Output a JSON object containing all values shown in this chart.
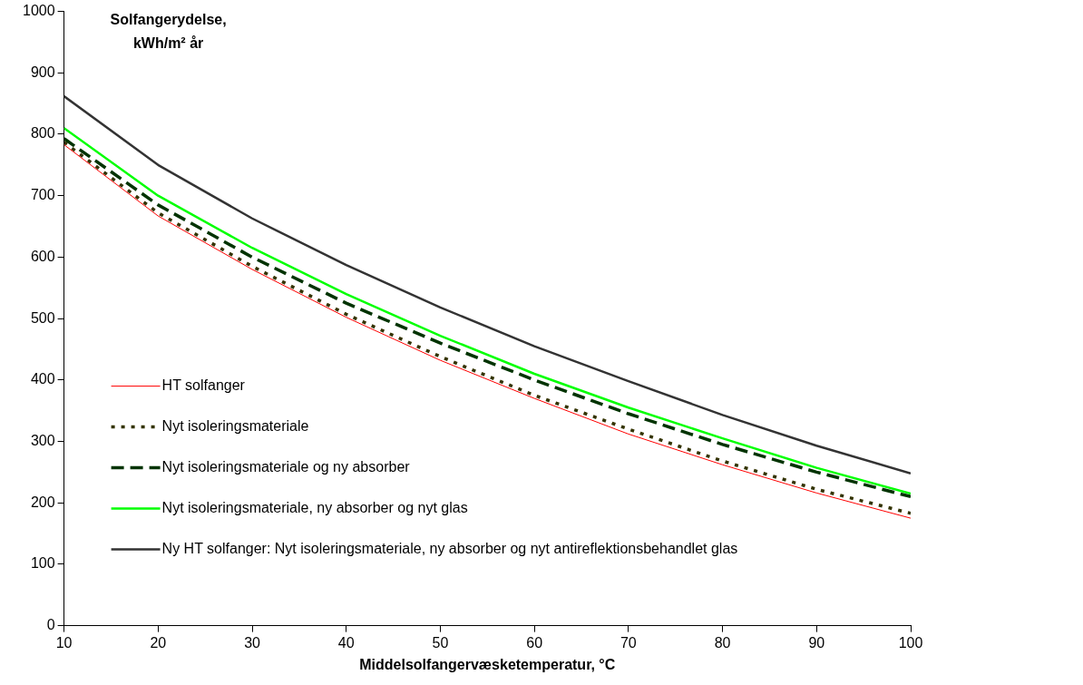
{
  "chart_data": {
    "type": "line",
    "xlabel": "Middelsolfangervæsketemperatur, °C",
    "ylabel": "Solfangerydelse, kWh/m² år",
    "x": [
      10,
      20,
      30,
      40,
      50,
      60,
      70,
      80,
      90,
      100
    ],
    "xlim": [
      10,
      100
    ],
    "xticks": [
      10,
      20,
      30,
      40,
      50,
      60,
      70,
      80,
      90,
      100
    ],
    "ylim": [
      0,
      1000
    ],
    "yticks": [
      0,
      100,
      200,
      300,
      400,
      500,
      600,
      700,
      800,
      900,
      1000
    ],
    "grid": false,
    "legend": "left",
    "marker": "none",
    "series": [
      {
        "name": "HT solfanger",
        "color": "#ff0000",
        "line_style": "solid",
        "values": [
          783,
          667,
          580,
          502,
          432,
          370,
          312,
          262,
          216,
          175
        ]
      },
      {
        "name": "Nyt isoleringsmateriale",
        "color": "#333300",
        "line_style": "dotted",
        "values": [
          787,
          672,
          585,
          507,
          438,
          375,
          320,
          268,
          222,
          183
        ]
      },
      {
        "name": "Nyt isoleringsmateriale og ny absorber",
        "color": "#003300",
        "line_style": "dashed",
        "values": [
          793,
          685,
          600,
          525,
          460,
          400,
          345,
          295,
          250,
          210
        ]
      },
      {
        "name": "Nyt isoleringsmateriale, ny absorber og nyt glas",
        "color": "#00ff00",
        "line_style": "solid",
        "values": [
          810,
          700,
          615,
          540,
          472,
          410,
          355,
          305,
          257,
          215
        ]
      },
      {
        "name": "Ny HT solfanger: Nyt isoleringsmateriale, ny absorber og nyt antireflektionsbehandlet glas",
        "color": "#333333",
        "line_style": "solid",
        "values": [
          862,
          750,
          663,
          587,
          518,
          455,
          398,
          343,
          293,
          248
        ]
      }
    ]
  }
}
